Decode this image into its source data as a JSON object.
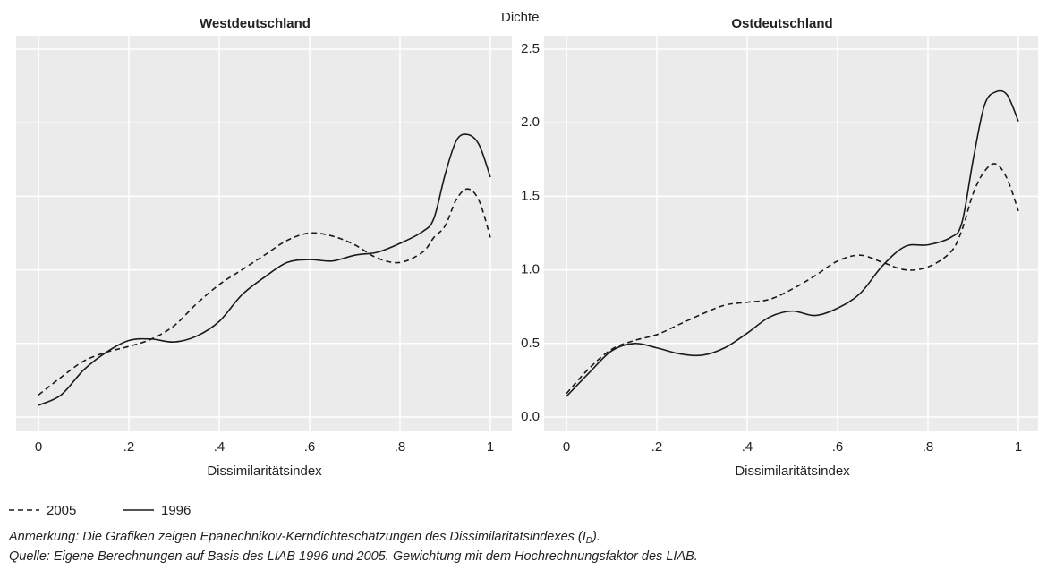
{
  "chart_data": [
    {
      "type": "line",
      "title": "Westdeutschland",
      "x_label": "Dissimilaritätsindex",
      "y_label": "Dichte",
      "x": [
        0,
        0.05,
        0.1,
        0.15,
        0.2,
        0.25,
        0.3,
        0.35,
        0.4,
        0.45,
        0.5,
        0.55,
        0.6,
        0.65,
        0.7,
        0.75,
        0.8,
        0.85,
        0.875,
        0.9,
        0.925,
        0.95,
        0.975,
        1
      ],
      "series": [
        {
          "name": "2005",
          "color": "#1a1a1a",
          "dash": true,
          "values": [
            0.15,
            0.27,
            0.38,
            0.44,
            0.48,
            0.53,
            0.62,
            0.77,
            0.9,
            1.0,
            1.1,
            1.2,
            1.25,
            1.23,
            1.17,
            1.08,
            1.05,
            1.12,
            1.22,
            1.3,
            1.48,
            1.55,
            1.47,
            1.22
          ]
        },
        {
          "name": "1996",
          "color": "#1a1a1a",
          "dash": false,
          "values": [
            0.08,
            0.15,
            0.32,
            0.44,
            0.52,
            0.53,
            0.51,
            0.55,
            0.65,
            0.83,
            0.95,
            1.05,
            1.07,
            1.06,
            1.1,
            1.12,
            1.18,
            1.26,
            1.35,
            1.65,
            1.88,
            1.92,
            1.85,
            1.63
          ]
        }
      ],
      "xlim": [
        0,
        1
      ],
      "xticks": [
        0,
        {
          "value": 0.2,
          "label": ".2"
        },
        {
          "value": 0.4,
          "label": ".4"
        },
        {
          "value": 0.6,
          "label": ".6"
        },
        {
          "value": 0.8,
          "label": ".8"
        },
        1
      ],
      "ylim": [
        0,
        2.5
      ],
      "yticks": [
        {
          "value": 0,
          "label": "0.0"
        },
        {
          "value": 0.5,
          "label": "0.5"
        },
        {
          "value": 1,
          "label": "1.0"
        },
        {
          "value": 1.5,
          "label": "1.5"
        },
        {
          "value": 2,
          "label": "2.0"
        },
        {
          "value": 2.5,
          "label": "2.5"
        }
      ],
      "grid": true
    },
    {
      "type": "line",
      "title": "Ostdeutschland",
      "x_label": "Dissimilaritätsindex",
      "x": [
        0,
        0.05,
        0.1,
        0.15,
        0.2,
        0.25,
        0.3,
        0.35,
        0.4,
        0.45,
        0.5,
        0.55,
        0.6,
        0.65,
        0.7,
        0.75,
        0.8,
        0.85,
        0.875,
        0.9,
        0.925,
        0.95,
        0.975,
        1
      ],
      "series": [
        {
          "color": "#1a1a1a",
          "dash": true,
          "values": [
            0.16,
            0.33,
            0.46,
            0.52,
            0.56,
            0.63,
            0.7,
            0.76,
            0.78,
            0.8,
            0.87,
            0.96,
            1.06,
            1.1,
            1.05,
            1.0,
            1.02,
            1.12,
            1.27,
            1.52,
            1.67,
            1.72,
            1.62,
            1.4
          ]
        },
        {
          "color": "#1a1a1a",
          "dash": false,
          "values": [
            0.14,
            0.3,
            0.45,
            0.5,
            0.47,
            0.43,
            0.42,
            0.47,
            0.57,
            0.68,
            0.72,
            0.69,
            0.74,
            0.84,
            1.03,
            1.16,
            1.17,
            1.22,
            1.32,
            1.75,
            2.12,
            2.21,
            2.19,
            2.01
          ]
        }
      ],
      "xlim": [
        0,
        1
      ],
      "xticks": [
        0,
        {
          "value": 0.2,
          "label": ".2"
        },
        {
          "value": 0.4,
          "label": ".4"
        },
        {
          "value": 0.6,
          "label": ".6"
        },
        {
          "value": 0.8,
          "label": ".8"
        },
        1
      ],
      "grid": true
    }
  ],
  "notes": {
    "line1": "Anmerkung: Die Grafiken zeigen Epanechnikov-Kerndichteschätzungen des Dissimilaritätsindexes (I",
    "line1_sub": "D",
    "line1_tail": ").",
    "line2": "Quelle: Eigene Berechnungen auf Basis des LIAB 1996 und 2005. Gewichtung mit dem Hochrechnungsfaktor des LIAB."
  }
}
